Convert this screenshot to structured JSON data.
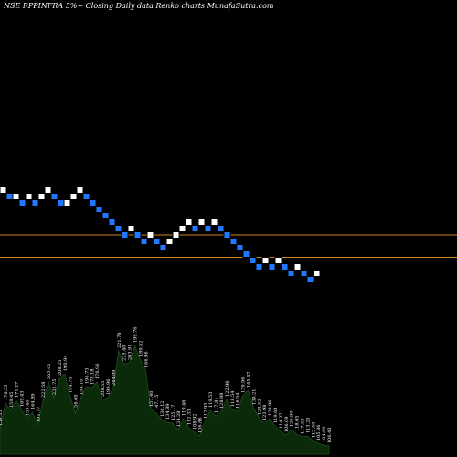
{
  "title": "NSE RPPINFRA 5%~  Closing Daily data  Renko  charts MunafaSutra.com",
  "colors": {
    "background": "#000000",
    "up_brick": "#ffffff",
    "down_brick": "#1f78ff",
    "brick_border": "#000000",
    "ref_line": "#c8821e",
    "volume_fill": "#0a2a0a",
    "volume_stroke": "#1f4f1f"
  },
  "chart_data": {
    "type": "renko",
    "bricks": [
      {
        "level": 0,
        "dir": "up"
      },
      {
        "level": -1,
        "dir": "down"
      },
      {
        "level": -1,
        "dir": "up"
      },
      {
        "level": -2,
        "dir": "down"
      },
      {
        "level": -1,
        "dir": "up"
      },
      {
        "level": -2,
        "dir": "down"
      },
      {
        "level": -1,
        "dir": "up"
      },
      {
        "level": 0,
        "dir": "up"
      },
      {
        "level": -1,
        "dir": "down"
      },
      {
        "level": -2,
        "dir": "down"
      },
      {
        "level": -2,
        "dir": "up"
      },
      {
        "level": -1,
        "dir": "up"
      },
      {
        "level": 0,
        "dir": "up"
      },
      {
        "level": -1,
        "dir": "down"
      },
      {
        "level": -2,
        "dir": "down"
      },
      {
        "level": -3,
        "dir": "down"
      },
      {
        "level": -4,
        "dir": "down"
      },
      {
        "level": -5,
        "dir": "down"
      },
      {
        "level": -6,
        "dir": "down"
      },
      {
        "level": -7,
        "dir": "down"
      },
      {
        "level": -6,
        "dir": "up"
      },
      {
        "level": -7,
        "dir": "down"
      },
      {
        "level": -8,
        "dir": "down"
      },
      {
        "level": -7,
        "dir": "up"
      },
      {
        "level": -8,
        "dir": "down"
      },
      {
        "level": -9,
        "dir": "down"
      },
      {
        "level": -8,
        "dir": "up"
      },
      {
        "level": -7,
        "dir": "up"
      },
      {
        "level": -6,
        "dir": "up"
      },
      {
        "level": -5,
        "dir": "up"
      },
      {
        "level": -6,
        "dir": "down"
      },
      {
        "level": -5,
        "dir": "up"
      },
      {
        "level": -6,
        "dir": "down"
      },
      {
        "level": -5,
        "dir": "up"
      },
      {
        "level": -6,
        "dir": "down"
      },
      {
        "level": -7,
        "dir": "down"
      },
      {
        "level": -8,
        "dir": "down"
      },
      {
        "level": -9,
        "dir": "down"
      },
      {
        "level": -10,
        "dir": "down"
      },
      {
        "level": -11,
        "dir": "down"
      },
      {
        "level": -12,
        "dir": "down"
      },
      {
        "level": -11,
        "dir": "up"
      },
      {
        "level": -12,
        "dir": "down"
      },
      {
        "level": -11,
        "dir": "up"
      },
      {
        "level": -12,
        "dir": "down"
      },
      {
        "level": -13,
        "dir": "down"
      },
      {
        "level": -12,
        "dir": "up"
      },
      {
        "level": -13,
        "dir": "down"
      },
      {
        "level": -14,
        "dir": "down"
      },
      {
        "level": -13,
        "dir": "up"
      }
    ],
    "ref_lines": [
      -7,
      -10.5
    ],
    "volume_labels": [
      "159.35",
      "176.55",
      "159.45",
      "171.27",
      "169.43",
      "159.46",
      "164.89",
      "191.77",
      "222.58",
      "205.42",
      "232.75",
      "208.25",
      "190.94",
      "194.75",
      "156.69",
      "158.10",
      "196.73",
      "178.18",
      "176.96",
      "208.55",
      "199.96",
      "244.89",
      "221.78",
      "225.40",
      "203.91",
      "199.76",
      "189.52",
      "166.96",
      "157.40",
      "147.15",
      "136.12",
      "134.89",
      "125.17",
      "124.28",
      "119.46",
      "112.33",
      "108.92",
      "106.86",
      "112.93",
      "119.53",
      "117.81",
      "128.88",
      "122.96",
      "118.54",
      "116.54",
      "139.96",
      "145.47",
      "139.21",
      "124.52",
      "123.98",
      "129.96",
      "119.68",
      "114.37",
      "106.09",
      "129.90",
      "118.05",
      "117.52",
      "113.20",
      "112.50",
      "105.86",
      "104.89",
      "106.43"
    ],
    "volume_values": [
      28,
      56,
      48,
      59,
      49,
      39,
      46,
      32,
      59,
      79,
      62,
      83,
      88,
      64,
      45,
      62,
      74,
      73,
      79,
      60,
      62,
      72,
      113,
      99,
      100,
      119,
      104,
      92,
      49,
      45,
      38,
      35,
      34,
      27,
      39,
      29,
      24,
      20,
      36,
      48,
      42,
      47,
      60,
      49,
      47,
      64,
      70,
      51,
      40,
      34,
      39,
      31,
      25,
      21,
      27,
      22,
      19,
      20,
      15,
      12,
      10,
      9
    ]
  }
}
